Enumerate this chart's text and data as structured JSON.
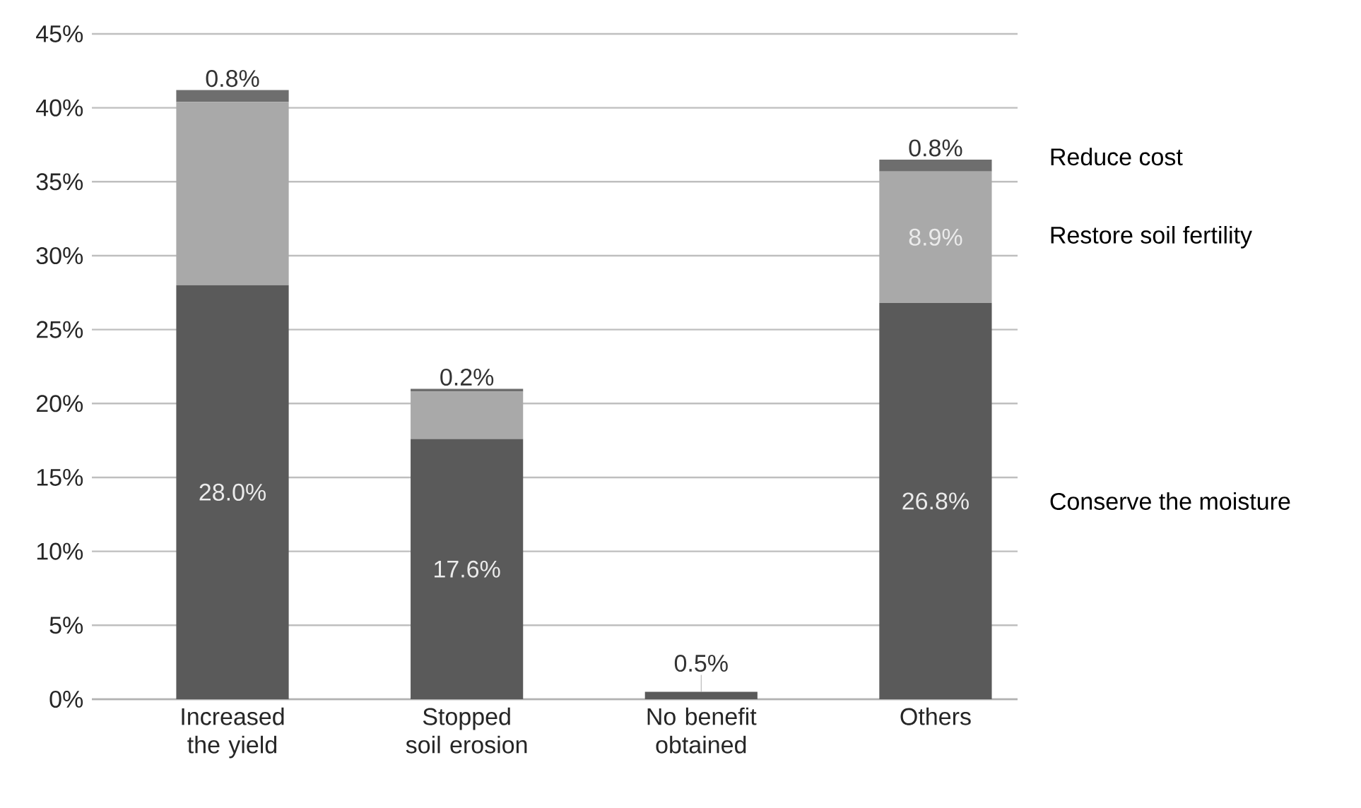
{
  "chart_data": {
    "type": "bar",
    "stacked": true,
    "categories": [
      "Increased the yield",
      "Stopped soil erosion",
      "No benefit obtained",
      "Others"
    ],
    "series": [
      {
        "name": "Conserve the moisture",
        "color": "#5a5a5a",
        "values": [
          28.0,
          17.6,
          0.5,
          26.8
        ],
        "value_labels": [
          "28.0%",
          "17.6%",
          "0.5%",
          "26.8%"
        ]
      },
      {
        "name": "Restore soil fertility",
        "color": "#a9a9a9",
        "values": [
          12.4,
          3.2,
          0,
          8.9
        ],
        "value_labels": [
          null,
          null,
          null,
          "8.9%"
        ]
      },
      {
        "name": "Reduce cost",
        "color": "#6e6e6e",
        "values": [
          0.8,
          0.2,
          0,
          0.8
        ],
        "value_labels": [
          "0.8%",
          "0.2%",
          null,
          "0.8%"
        ]
      }
    ],
    "ylim": [
      0,
      45
    ],
    "yticks": [
      {
        "value": 0,
        "label": "0%"
      },
      {
        "value": 5,
        "label": "5%"
      },
      {
        "value": 10,
        "label": "10%"
      },
      {
        "value": 15,
        "label": "15%"
      },
      {
        "value": 20,
        "label": "20%"
      },
      {
        "value": 25,
        "label": "25%"
      },
      {
        "value": 30,
        "label": "30%"
      },
      {
        "value": 35,
        "label": "35%"
      },
      {
        "value": 40,
        "label": "40%"
      },
      {
        "value": 45,
        "label": "45%"
      }
    ],
    "grid": "y",
    "legend": false
  }
}
